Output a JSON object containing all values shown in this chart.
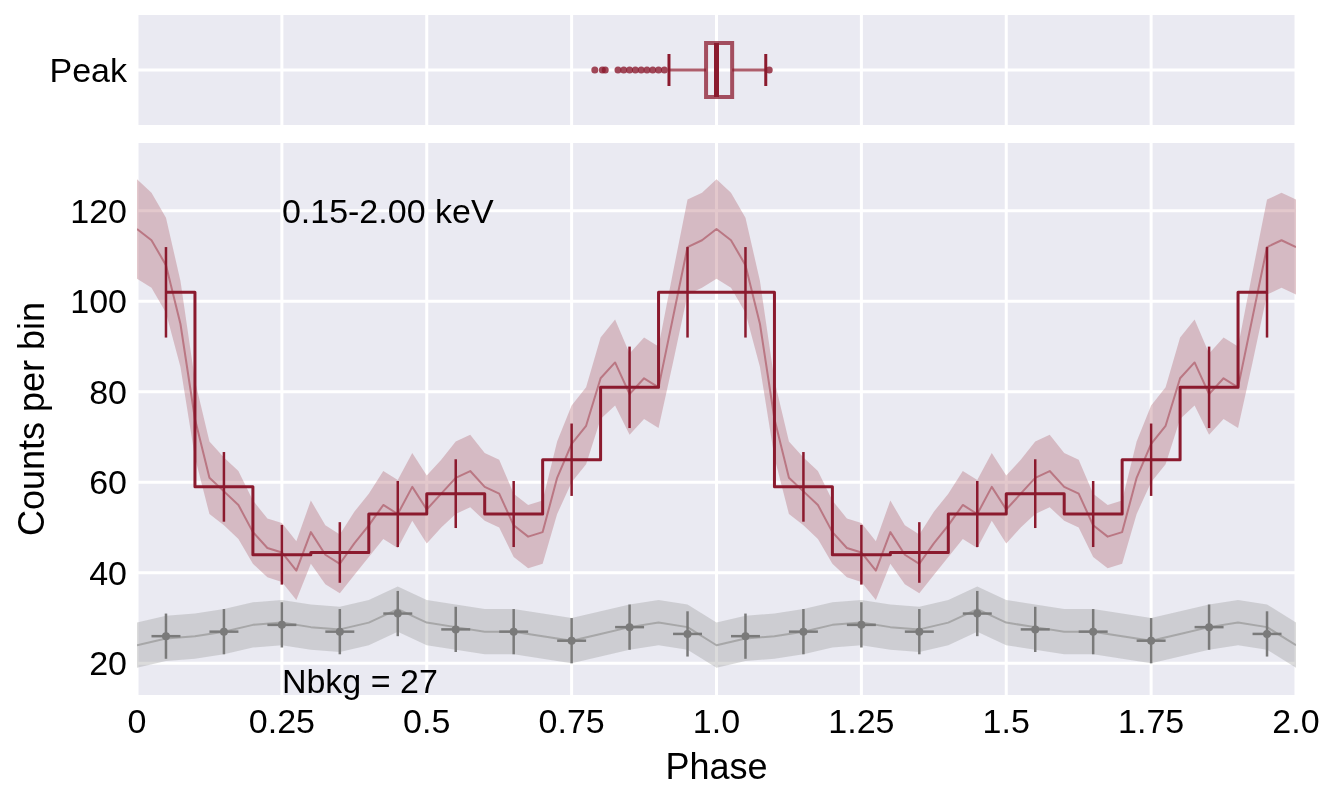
{
  "chart_data": [
    {
      "type": "box",
      "orientation": "horizontal",
      "categories": [
        "Peak"
      ],
      "xlim": [
        0,
        2
      ],
      "xticks": [
        0,
        0.25,
        0.5,
        0.75,
        1,
        1.25,
        1.5,
        1.75,
        2
      ],
      "tick_labels": "y",
      "grid": true,
      "color": "#8b1a2e",
      "boxes": [
        {
          "low": 0.918,
          "q1": 0.982,
          "median": 1.0,
          "q3": 1.027,
          "high": 1.085,
          "outliers": [
            0.79,
            0.803,
            0.808,
            0.83,
            0.84,
            0.85,
            0.86,
            0.87,
            0.88,
            0.89,
            0.9,
            0.91,
            1.091
          ]
        }
      ]
    },
    {
      "type": "step",
      "xlabel": "Phase",
      "ylabel": "Counts per bin",
      "xlim": [
        0,
        2
      ],
      "ylim": [
        13,
        135
      ],
      "xticks": [
        0,
        0.25,
        0.5,
        0.75,
        {
          "value": 1,
          "label": "1.0"
        },
        1.25,
        1.5,
        1.75,
        {
          "value": 2,
          "label": "2.0"
        }
      ],
      "yticks": [
        20,
        40,
        60,
        80,
        100,
        120
      ],
      "grid": true,
      "annotations": [
        "0.15-2.00 keV",
        "Nbkg = 27"
      ],
      "series": [
        {
          "type": "line",
          "color": "#999999",
          "x": [
            0,
            0.05,
            0.1,
            0.15,
            0.2,
            0.25,
            0.3,
            0.35,
            0.4,
            0.45,
            0.5,
            0.55,
            0.6,
            0.65,
            0.7,
            0.75,
            0.8,
            0.85,
            0.9,
            0.95,
            1,
            1.05,
            1.1,
            1.15,
            1.2,
            1.25,
            1.3,
            1.35,
            1.4,
            1.45,
            1.5,
            1.55,
            1.6,
            1.65,
            1.7,
            1.75,
            1.8,
            1.85,
            1.9,
            1.95,
            2
          ],
          "values": [
            24,
            25.5,
            26,
            27,
            28.5,
            29,
            28,
            27.5,
            29,
            32,
            29,
            28,
            27,
            27,
            26,
            25,
            26.5,
            28,
            29,
            28,
            24,
            25.5,
            26,
            27,
            28.5,
            29,
            28,
            27.5,
            29,
            32,
            29,
            28,
            27,
            27,
            26,
            25,
            26.5,
            28,
            29,
            28,
            24
          ],
          "lower": [
            19,
            20.5,
            21,
            22,
            23.5,
            24,
            23,
            22.5,
            24,
            27,
            24,
            23,
            22,
            22,
            21,
            20,
            21.5,
            23,
            24,
            23,
            19,
            20.5,
            21,
            22,
            23.5,
            24,
            23,
            22.5,
            24,
            27,
            24,
            23,
            22,
            22,
            21,
            20,
            21.5,
            23,
            24,
            23,
            19
          ],
          "upper": [
            29,
            30.5,
            31,
            32,
            33.5,
            34,
            33,
            32.5,
            34,
            37,
            34,
            33,
            32,
            32,
            31,
            30,
            31.5,
            33,
            34,
            33,
            29,
            30.5,
            31,
            32,
            33.5,
            34,
            33,
            32.5,
            34,
            37,
            34,
            33,
            32,
            32,
            31,
            30,
            31.5,
            33,
            34,
            33,
            29
          ]
        },
        {
          "type": "scatter",
          "color": "#7a7a7a",
          "marker": "circle",
          "x": [
            0.05,
            0.15,
            0.25,
            0.35,
            0.45,
            0.55,
            0.65,
            0.75,
            0.85,
            0.95,
            1.05,
            1.15,
            1.25,
            1.35,
            1.45,
            1.55,
            1.65,
            1.75,
            1.85,
            1.95
          ],
          "values": [
            26,
            27,
            28.5,
            27,
            31,
            27.5,
            27,
            25,
            28,
            26.5,
            26,
            27,
            28.5,
            27,
            31,
            27.5,
            27,
            25,
            28,
            26.5
          ],
          "errors": [
            5,
            5,
            5,
            5,
            5,
            5,
            5,
            5,
            5,
            5,
            5,
            5,
            5,
            5,
            5,
            5,
            5,
            5,
            5,
            5
          ],
          "xerrors": [
            0.025,
            0.025,
            0.025,
            0.025,
            0.025,
            0.025,
            0.025,
            0.025,
            0.025,
            0.025,
            0.025,
            0.025,
            0.025,
            0.025,
            0.025,
            0.025,
            0.025,
            0.025,
            0.025,
            0.025
          ]
        },
        {
          "type": "line",
          "color": "#b0606e",
          "x": [
            0,
            0.025,
            0.05,
            0.075,
            0.1,
            0.125,
            0.15,
            0.175,
            0.2,
            0.225,
            0.25,
            0.275,
            0.3,
            0.325,
            0.35,
            0.375,
            0.4,
            0.425,
            0.45,
            0.475,
            0.5,
            0.525,
            0.55,
            0.575,
            0.6,
            0.625,
            0.65,
            0.675,
            0.7,
            0.725,
            0.75,
            0.775,
            0.8,
            0.825,
            0.85,
            0.875,
            0.9,
            0.925,
            0.95,
            0.975,
            1,
            1.025,
            1.05,
            1.075,
            1.1,
            1.125,
            1.15,
            1.175,
            1.2,
            1.225,
            1.25,
            1.275,
            1.3,
            1.325,
            1.35,
            1.375,
            1.4,
            1.425,
            1.45,
            1.475,
            1.5,
            1.525,
            1.55,
            1.575,
            1.6,
            1.625,
            1.65,
            1.675,
            1.7,
            1.725,
            1.75,
            1.775,
            1.8,
            1.825,
            1.85,
            1.875,
            1.9,
            1.925,
            1.95,
            1.975,
            2
          ],
          "values": [
            116,
            113.5,
            108,
            95,
            74,
            61,
            58,
            55,
            49,
            45.5,
            44.5,
            40.5,
            49,
            44,
            42,
            46.5,
            50.5,
            55,
            53,
            59,
            54,
            57.5,
            61,
            62.5,
            59,
            57.5,
            50.5,
            48,
            49,
            61,
            68.5,
            72.5,
            83,
            86.5,
            79.5,
            83,
            81,
            96.5,
            112,
            113.5,
            116,
            113.5,
            108,
            95,
            74,
            61,
            58,
            55,
            49,
            45.5,
            44.5,
            40.5,
            49,
            44,
            42,
            46.5,
            50.5,
            55,
            53,
            59,
            54,
            57.5,
            61,
            62.5,
            59,
            57.5,
            50.5,
            48,
            49,
            61,
            68.5,
            72.5,
            83,
            86.5,
            79.5,
            83,
            81,
            96.5,
            112,
            113.5,
            112
          ],
          "lower": [
            105,
            103,
            97.5,
            85.5,
            65.5,
            53,
            50.5,
            47.5,
            42,
            39,
            38,
            34,
            42,
            37.5,
            35.5,
            39.5,
            43.5,
            47.5,
            45.5,
            51.5,
            46.5,
            50,
            53,
            54.5,
            51.5,
            50,
            43.5,
            41,
            42,
            53,
            60,
            64,
            74,
            77,
            70.5,
            74,
            72,
            86.5,
            101.5,
            103,
            105,
            103,
            97.5,
            85.5,
            65.5,
            53,
            50.5,
            47.5,
            42,
            39,
            38,
            34,
            42,
            37.5,
            35.5,
            39.5,
            43.5,
            47.5,
            45.5,
            51.5,
            46.5,
            50,
            53,
            54.5,
            51.5,
            50,
            43.5,
            41,
            42,
            53,
            60,
            64,
            74,
            77,
            70.5,
            74,
            72,
            86.5,
            101.5,
            103,
            101.5
          ],
          "upper": [
            127,
            124,
            118.5,
            104.5,
            82.5,
            69,
            65.5,
            62.5,
            56,
            52,
            51,
            47,
            56,
            50.5,
            48.5,
            53.5,
            57.5,
            62.5,
            60.5,
            66.5,
            61.5,
            65,
            69,
            70.5,
            66.5,
            65,
            57.5,
            55,
            56,
            69,
            77,
            81,
            92,
            96,
            88.5,
            92,
            90,
            106.5,
            122.5,
            124,
            127,
            124,
            118.5,
            104.5,
            82.5,
            69,
            65.5,
            62.5,
            56,
            52,
            51,
            47,
            56,
            50.5,
            48.5,
            53.5,
            57.5,
            62.5,
            60.5,
            66.5,
            61.5,
            65,
            69,
            70.5,
            66.5,
            65,
            57.5,
            55,
            56,
            69,
            77,
            81,
            92,
            96,
            88.5,
            92,
            90,
            106.5,
            122.5,
            124,
            122.5
          ]
        },
        {
          "type": "step",
          "color": "#8b1a2e",
          "x": [
            0.05,
            0.15,
            0.25,
            0.35,
            0.45,
            0.55,
            0.65,
            0.75,
            0.85,
            0.95,
            1.05,
            1.15,
            1.25,
            1.35,
            1.45,
            1.55,
            1.65,
            1.75,
            1.85,
            1.95
          ],
          "values": [
            102,
            59,
            44,
            44.5,
            53,
            57.5,
            53,
            65,
            81,
            102,
            102,
            59,
            44,
            44.5,
            53,
            57.5,
            53,
            65,
            81,
            102
          ],
          "errors": [
            10,
            7.7,
            6.6,
            6.7,
            7.3,
            7.6,
            7.3,
            8,
            9,
            10,
            10,
            7.7,
            6.6,
            6.7,
            7.3,
            7.6,
            7.3,
            8,
            9,
            10
          ]
        }
      ]
    }
  ]
}
